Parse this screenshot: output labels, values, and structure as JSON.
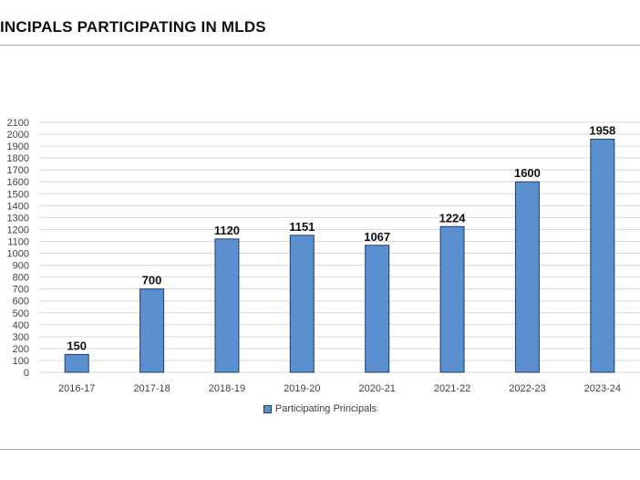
{
  "page": {
    "title": "INCIPALS PARTICIPATING IN MLDS"
  },
  "colors": {
    "bar_fill": "#5b8fd0",
    "bar_stroke": "#1f3f66",
    "grid": "#d9d9d9",
    "text": "#404040"
  },
  "chart_data": {
    "type": "bar",
    "categories": [
      "2016-17",
      "2017-18",
      "2018-19",
      "2019-20",
      "2020-21",
      "2021-22",
      "2022-23",
      "2023-24"
    ],
    "series": [
      {
        "name": "Participating Principals",
        "values": [
          150,
          700,
          1120,
          1151,
          1067,
          1224,
          1600,
          1958
        ],
        "data_labels": [
          "150",
          "700",
          "1120",
          "1151",
          "1067",
          "1224",
          "1600",
          "1958"
        ]
      }
    ],
    "ylim": [
      0,
      2100
    ],
    "ytick_step": 100,
    "ytick_labels": [
      "0",
      "100",
      "200",
      "300",
      "400",
      "500",
      "600",
      "700",
      "800",
      "900",
      "1000",
      "1100",
      "1200",
      "1300",
      "1400",
      "1500",
      "1600",
      "1700",
      "1800",
      "1900",
      "2000",
      "2100"
    ],
    "grid": true,
    "legend_position": "bottom"
  }
}
